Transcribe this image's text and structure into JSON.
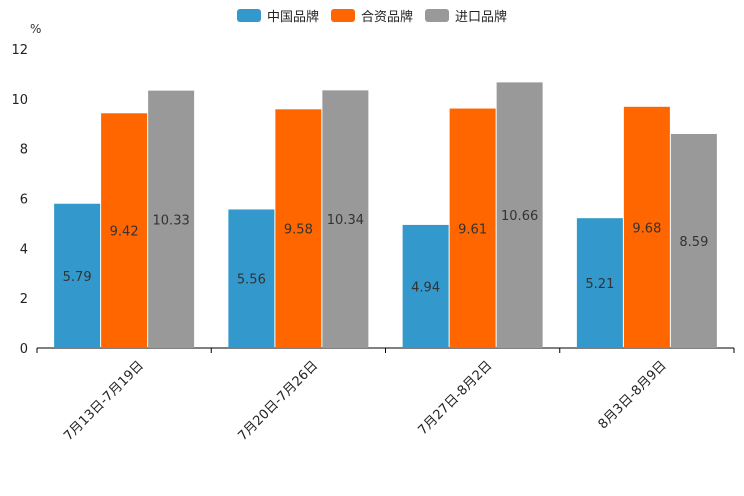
{
  "chart_data": {
    "type": "bar",
    "title": "",
    "ylabel": "%",
    "xlabel": "",
    "ylim": [
      0,
      12
    ],
    "yticks": [
      0,
      2,
      4,
      6,
      8,
      10,
      12
    ],
    "categories": [
      "7月13日-7月19日",
      "7月20日-7月26日",
      "7月27日-8月2日",
      "8月3日-8月9日"
    ],
    "series": [
      {
        "name": "中国品牌",
        "color": "#3399cc",
        "values": [
          5.79,
          5.56,
          4.94,
          5.21
        ]
      },
      {
        "name": "合资品牌",
        "color": "#ff6600",
        "values": [
          9.42,
          9.58,
          9.61,
          9.68
        ]
      },
      {
        "name": "进口品牌",
        "color": "#999999",
        "values": [
          10.33,
          10.34,
          10.66,
          8.59
        ]
      }
    ],
    "legend_position": "top-center"
  }
}
